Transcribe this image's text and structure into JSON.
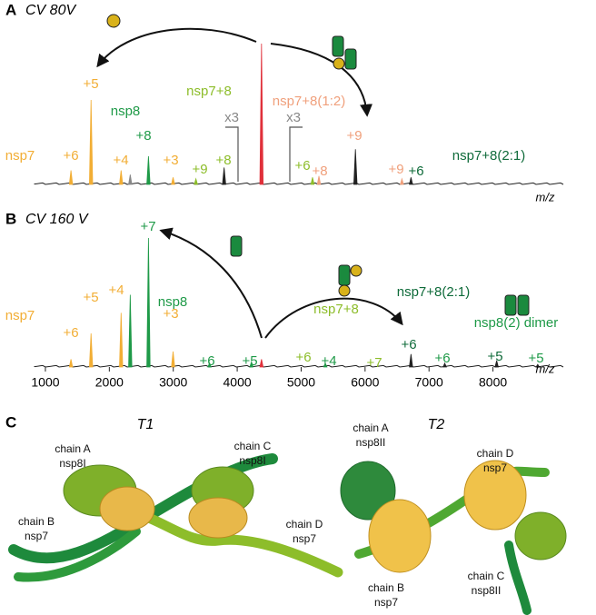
{
  "chart_data": [
    {
      "type": "spectrum",
      "panel": "A",
      "subtitle": "CV 80V",
      "xlabel": "m/z",
      "xlim": [
        830,
        9100
      ],
      "ylim": [
        0,
        100
      ],
      "x": [
        1400,
        1714,
        2184,
        2327,
        2612,
        2997,
        3354,
        3795,
        4380,
        5178,
        5278,
        5849,
        6576,
        6718
      ],
      "values": [
        10,
        60,
        10,
        7,
        20,
        5,
        4,
        12,
        100,
        5,
        6,
        25,
        4,
        5
      ],
      "colors": [
        "#f2ae35",
        "#f2ae35",
        "#f2ae35",
        "#888888",
        "#1f9a48",
        "#f2ae35",
        "#8dbd2a",
        "#222222",
        "#e0303a",
        "#8dbd2a",
        "#f0a07c",
        "#222222",
        "#f0a07c",
        "#222222"
      ],
      "annotations": [
        {
          "text": "nsp7",
          "color": "#f2ae35"
        },
        {
          "text": "+6",
          "color": "#f2ae35"
        },
        {
          "text": "+5",
          "color": "#f2ae35"
        },
        {
          "text": "+4",
          "color": "#f2ae35"
        },
        {
          "text": "+3",
          "color": "#f2ae35"
        },
        {
          "text": "nsp8",
          "color": "#1f9a48"
        },
        {
          "text": "+8",
          "color": "#1f9a48"
        },
        {
          "text": "nsp7+8",
          "color": "#8dbd2a"
        },
        {
          "text": "+9",
          "color": "#8dbd2a"
        },
        {
          "text": "+8",
          "color": "#8dbd2a"
        },
        {
          "text": "x3",
          "color": "#888888"
        },
        {
          "text": "x3",
          "color": "#888888"
        },
        {
          "text": "nsp7+8(1:2)",
          "color": "#f0a07c"
        },
        {
          "text": "+9",
          "color": "#f0a07c"
        },
        {
          "text": "+6",
          "color": "#8dbd2a"
        },
        {
          "text": "+8",
          "color": "#f0a07c"
        },
        {
          "text": "+9",
          "color": "#f0a07c"
        },
        {
          "text": "+6",
          "color": "#0f6b3a"
        },
        {
          "text": "nsp7+8(2:1)",
          "color": "#0f6b3a"
        }
      ]
    },
    {
      "type": "spectrum",
      "panel": "B",
      "subtitle": "CV 160 V",
      "xlabel": "m/z",
      "xlim": [
        830,
        9100
      ],
      "ylim": [
        0,
        100
      ],
      "xticks": [
        1000,
        2000,
        3000,
        4000,
        5000,
        6000,
        7000,
        8000
      ],
      "x": [
        1400,
        1714,
        2184,
        2327,
        2612,
        2997,
        3567,
        4223,
        4380,
        5378,
        6718,
        7246,
        8058,
        8700
      ],
      "values": [
        6,
        26,
        42,
        56,
        100,
        12,
        3,
        4,
        6,
        3,
        10,
        3,
        5,
        2
      ],
      "colors": [
        "#f2ae35",
        "#f2ae35",
        "#f2ae35",
        "#1f9a48",
        "#1f9a48",
        "#f2ae35",
        "#1f9a48",
        "#1f9a48",
        "#e0303a",
        "#1f9a48",
        "#222222",
        "#222222",
        "#222222",
        "#222222"
      ],
      "annotations": [
        {
          "text": "nsp7",
          "color": "#f2ae35"
        },
        {
          "text": "+6",
          "color": "#f2ae35"
        },
        {
          "text": "+5",
          "color": "#f2ae35"
        },
        {
          "text": "+4",
          "color": "#f2ae35"
        },
        {
          "text": "+3",
          "color": "#f2ae35"
        },
        {
          "text": "+7",
          "color": "#1f9a48"
        },
        {
          "text": "nsp8",
          "color": "#1f9a48"
        },
        {
          "text": "+6",
          "color": "#1f9a48"
        },
        {
          "text": "+5",
          "color": "#1f9a48"
        },
        {
          "text": "+6",
          "color": "#8dbd2a"
        },
        {
          "text": "+4",
          "color": "#1f9a48"
        },
        {
          "text": "nsp7+8",
          "color": "#8dbd2a"
        },
        {
          "text": "+7",
          "color": "#8dbd2a"
        },
        {
          "text": "nsp7+8(2:1)",
          "color": "#0f6b3a"
        },
        {
          "text": "+6",
          "color": "#0f6b3a"
        },
        {
          "text": "+6",
          "color": "#1f9a48"
        },
        {
          "text": "+5",
          "color": "#0f6b3a"
        },
        {
          "text": "+5",
          "color": "#1f9a48"
        },
        {
          "text": "nsp8(2) dimer",
          "color": "#1f9a48"
        }
      ]
    }
  ],
  "panel_c": {
    "panel": "C",
    "structures": [
      {
        "title": "T1",
        "chains": [
          {
            "name": "chain A",
            "label": "nsp8I"
          },
          {
            "name": "chain C",
            "label": "nsp8I"
          },
          {
            "name": "chain B",
            "label": "nsp7"
          },
          {
            "name": "chain D",
            "label": "nsp7"
          }
        ]
      },
      {
        "title": "T2",
        "chains": [
          {
            "name": "chain A",
            "label": "nsp8II"
          },
          {
            "name": "chain D",
            "label": "nsp7"
          },
          {
            "name": "chain B",
            "label": "nsp7"
          },
          {
            "name": "chain C",
            "label": "nsp8II"
          }
        ]
      }
    ]
  }
}
